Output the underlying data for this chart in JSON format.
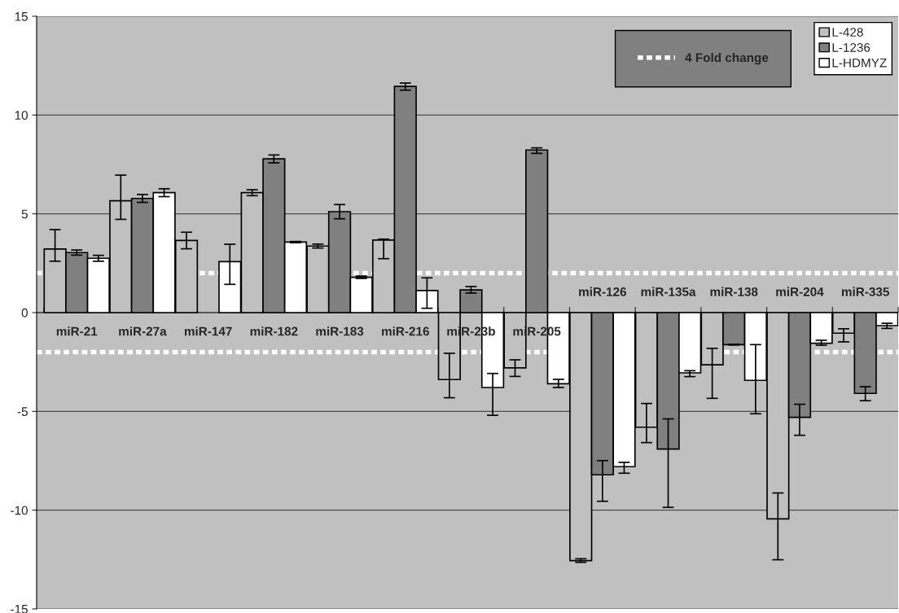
{
  "chart_data": {
    "type": "bar",
    "categories": [
      "miR-21",
      "miR-27a",
      "miR-147",
      "miR-182",
      "miR-183",
      "miR-216",
      "miR-23b",
      "miR-205",
      "miR-126",
      "miR-135a",
      "miR-138",
      "miR-204",
      "miR-335"
    ],
    "series": [
      {
        "name": "L-428",
        "color": "#c0c0c0",
        "values": [
          3.22,
          5.66,
          3.65,
          6.07,
          3.37,
          3.67,
          -3.39,
          -2.8,
          -12.55,
          -5.8,
          -2.64,
          -10.44,
          -1.04
        ],
        "errors": [
          [
            2.6,
            4.2
          ],
          [
            4.72,
            6.96
          ],
          [
            3.23,
            4.07
          ],
          [
            5.92,
            6.22
          ],
          [
            3.27,
            3.47
          ],
          [
            2.73,
            3.72
          ],
          [
            -4.31,
            -2.06
          ],
          [
            -3.23,
            -2.39
          ],
          [
            -12.64,
            -12.46
          ],
          [
            -6.58,
            -4.6
          ],
          [
            -4.34,
            -1.81
          ],
          [
            -12.51,
            -9.13
          ],
          [
            -1.48,
            -0.82
          ]
        ]
      },
      {
        "name": "L-1236",
        "color": "#808080",
        "values": [
          3.04,
          5.78,
          null,
          7.78,
          5.11,
          11.45,
          1.15,
          8.23,
          -8.21,
          -6.91,
          -1.62,
          -5.3,
          -4.09
        ],
        "errors": [
          [
            2.91,
            3.17
          ],
          [
            5.58,
            5.98
          ],
          null,
          [
            7.58,
            7.98
          ],
          [
            4.75,
            5.47
          ],
          [
            11.26,
            11.62
          ],
          [
            0.99,
            1.32
          ],
          [
            8.06,
            8.34
          ],
          [
            -9.55,
            -7.49
          ],
          [
            -9.86,
            -5.38
          ],
          [
            -1.64,
            -1.6
          ],
          [
            -6.21,
            -4.64
          ],
          [
            -4.46,
            -3.75
          ]
        ]
      },
      {
        "name": "L-HDMYZ",
        "color": "#ffffff",
        "values": [
          2.75,
          6.07,
          2.58,
          3.57,
          1.79,
          1.12,
          -3.79,
          -3.6,
          -7.8,
          -3.05,
          -3.43,
          -1.55,
          -0.66
        ],
        "errors": [
          [
            2.6,
            2.9
          ],
          [
            5.87,
            6.27
          ],
          [
            1.43,
            3.46
          ],
          [
            3.54,
            3.6
          ],
          [
            1.73,
            1.85
          ],
          [
            0.22,
            1.76
          ],
          [
            -5.2,
            -3.08
          ],
          [
            -3.79,
            -3.38
          ],
          [
            -8.13,
            -7.58
          ],
          [
            -3.24,
            -2.94
          ],
          [
            -5.12,
            -1.62
          ],
          [
            -1.65,
            -1.4
          ],
          [
            -0.8,
            -0.54
          ]
        ]
      }
    ],
    "ylim": [
      -15,
      15
    ],
    "yticks": [
      -15,
      -10,
      -5,
      0,
      5,
      10,
      15
    ],
    "grid": "y",
    "legend": "top right",
    "ref_lines": [
      {
        "axis": "y",
        "value": 2,
        "label": "4 Fold change",
        "color": "#ffffff",
        "line_style": "dotted"
      },
      {
        "axis": "y",
        "value": -2,
        "color": "#ffffff",
        "line_style": "dotted"
      }
    ]
  }
}
